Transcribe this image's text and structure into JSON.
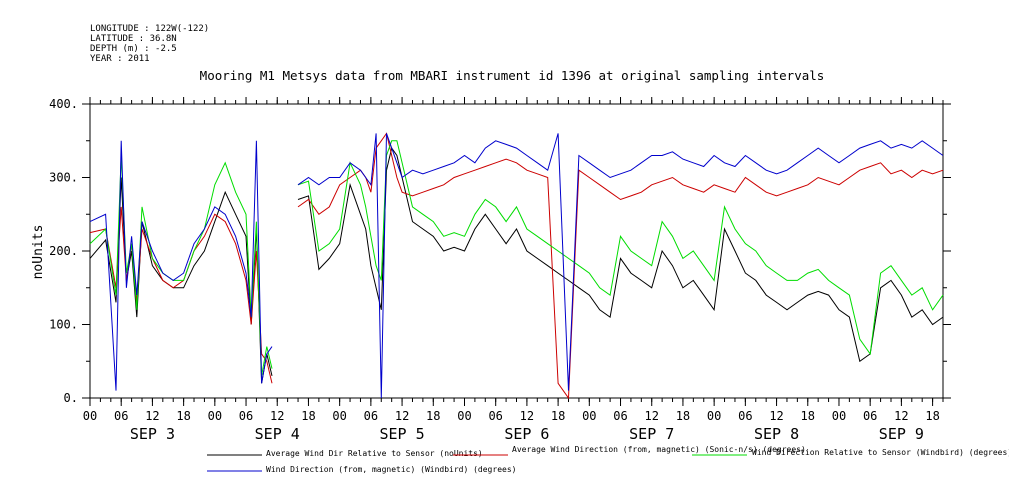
{
  "header": {
    "longitude": "LONGITUDE : 122W(-122)",
    "latitude": "LATITUDE : 36.8N",
    "depth": "DEPTH (m) : -2.5",
    "year": "YEAR : 2011"
  },
  "chart_data": {
    "type": "line",
    "title": "Mooring M1 Metsys data from MBARI instrument id 1396 at original sampling intervals",
    "xlabel": "",
    "ylabel": "noUnits",
    "xlim_hours": [
      0,
      164
    ],
    "ylim": [
      0,
      400
    ],
    "yticks": [
      0,
      100,
      200,
      300,
      400
    ],
    "ytick_labels": [
      "0.",
      "100.",
      "200.",
      "300.",
      "400."
    ],
    "hour_labels": [
      "00",
      "06",
      "12",
      "18",
      "00",
      "06",
      "12",
      "18",
      "00",
      "06",
      "12",
      "18",
      "00",
      "06",
      "12",
      "18",
      "00",
      "06",
      "12",
      "18",
      "00",
      "06",
      "12",
      "18",
      "00",
      "06",
      "12",
      "18"
    ],
    "day_labels": [
      "SEP 3",
      "SEP 4",
      "SEP 5",
      "SEP 6",
      "SEP 7",
      "SEP 8",
      "SEP 9"
    ],
    "grid": false,
    "legend_position": "bottom",
    "series": [
      {
        "name": "Average Wind Dir Relative to Sensor (noUnits)",
        "color": "#000000",
        "x": [
          0,
          3,
          5,
          6,
          7,
          8,
          9,
          10,
          12,
          14,
          16,
          18,
          20,
          22,
          24,
          26,
          28,
          30,
          31,
          32,
          33,
          34,
          35,
          38,
          40,
          42,
          44,
          46,
          48,
          50,
          52,
          53,
          54,
          55,
          56,
          57,
          58,
          59,
          60,
          62,
          64,
          66,
          68,
          70,
          72,
          74,
          76,
          78,
          80,
          82,
          84,
          86,
          88,
          90,
          92,
          94,
          96,
          98,
          100,
          102,
          104,
          106,
          108,
          110,
          112,
          114,
          116,
          118,
          120,
          122,
          124,
          126,
          128,
          130,
          132,
          134,
          136,
          138,
          140,
          142,
          144,
          146,
          148,
          150,
          152,
          154,
          156,
          158,
          160,
          162,
          164
        ],
        "y": [
          190,
          215,
          130,
          300,
          160,
          200,
          110,
          240,
          180,
          160,
          150,
          150,
          180,
          200,
          240,
          280,
          250,
          220,
          100,
          230,
          20,
          60,
          30,
          null,
          270,
          275,
          175,
          190,
          210,
          290,
          250,
          230,
          180,
          150,
          120,
          310,
          340,
          330,
          300,
          240,
          230,
          220,
          200,
          205,
          200,
          230,
          250,
          230,
          210,
          230,
          200,
          190,
          180,
          170,
          160,
          150,
          140,
          120,
          110,
          190,
          170,
          160,
          150,
          200,
          180,
          150,
          160,
          140,
          120,
          230,
          200,
          170,
          160,
          140,
          130,
          120,
          130,
          140,
          145,
          140,
          120,
          110,
          50,
          60,
          150,
          160,
          140,
          110,
          120,
          100,
          110
        ]
      },
      {
        "name": "Average Wind Direction (from, magnetic) (Sonic-n/s) (degrees)",
        "color": "#cc0000",
        "x": [
          0,
          3,
          5,
          6,
          7,
          8,
          9,
          10,
          12,
          14,
          16,
          18,
          20,
          22,
          24,
          26,
          28,
          30,
          31,
          32,
          33,
          34,
          35,
          38,
          40,
          42,
          44,
          46,
          48,
          50,
          52,
          53,
          54,
          55,
          56,
          57,
          58,
          59,
          60,
          62,
          64,
          66,
          68,
          70,
          72,
          74,
          76,
          78,
          80,
          82,
          84,
          86,
          88,
          90,
          92,
          94,
          96,
          98,
          100,
          102,
          104,
          106,
          108,
          110,
          112,
          114,
          116,
          118,
          120,
          122,
          124,
          126,
          128,
          130,
          132,
          134,
          136,
          138,
          140,
          142,
          144,
          146,
          148,
          150,
          152,
          154,
          156,
          158,
          160,
          162,
          164
        ],
        "y": [
          225,
          230,
          150,
          260,
          160,
          210,
          130,
          230,
          190,
          160,
          150,
          160,
          200,
          220,
          250,
          240,
          210,
          160,
          100,
          200,
          60,
          50,
          20,
          null,
          260,
          270,
          250,
          260,
          290,
          300,
          310,
          300,
          280,
          340,
          350,
          360,
          330,
          300,
          280,
          275,
          280,
          285,
          290,
          300,
          305,
          310,
          315,
          320,
          325,
          320,
          310,
          305,
          300,
          20,
          0,
          310,
          300,
          290,
          280,
          270,
          275,
          280,
          290,
          295,
          300,
          290,
          285,
          280,
          290,
          285,
          280,
          300,
          290,
          280,
          275,
          280,
          285,
          290,
          300,
          295,
          290,
          300,
          310,
          315,
          320,
          305,
          310,
          300,
          310,
          305,
          310
        ]
      },
      {
        "name": "Wind Direction Relative to Sensor (Windbird) (degrees)",
        "color": "#00dd00",
        "x": [
          0,
          3,
          5,
          6,
          7,
          8,
          9,
          10,
          12,
          14,
          16,
          18,
          20,
          22,
          24,
          26,
          28,
          30,
          31,
          32,
          33,
          34,
          35,
          38,
          40,
          42,
          44,
          46,
          48,
          50,
          52,
          53,
          54,
          55,
          56,
          57,
          58,
          59,
          60,
          62,
          64,
          66,
          68,
          70,
          72,
          74,
          76,
          78,
          80,
          82,
          84,
          86,
          88,
          90,
          92,
          94,
          96,
          98,
          100,
          102,
          104,
          106,
          108,
          110,
          112,
          114,
          116,
          118,
          120,
          122,
          124,
          126,
          128,
          130,
          132,
          134,
          136,
          138,
          140,
          142,
          144,
          146,
          148,
          150,
          152,
          154,
          156,
          158,
          160,
          162,
          164
        ],
        "y": [
          210,
          230,
          140,
          330,
          170,
          210,
          120,
          260,
          190,
          170,
          160,
          160,
          200,
          230,
          290,
          320,
          280,
          250,
          110,
          240,
          30,
          70,
          40,
          null,
          290,
          295,
          200,
          210,
          230,
          320,
          290,
          260,
          220,
          180,
          160,
          330,
          350,
          350,
          320,
          260,
          250,
          240,
          220,
          225,
          220,
          250,
          270,
          260,
          240,
          260,
          230,
          220,
          210,
          200,
          190,
          180,
          170,
          150,
          140,
          220,
          200,
          190,
          180,
          240,
          220,
          190,
          200,
          180,
          160,
          260,
          230,
          210,
          200,
          180,
          170,
          160,
          160,
          170,
          175,
          160,
          150,
          140,
          80,
          60,
          170,
          180,
          160,
          140,
          150,
          120,
          140
        ]
      },
      {
        "name": "Wind Direction (from, magnetic) (Windbird) (degrees)",
        "color": "#0000cc",
        "x": [
          0,
          3,
          5,
          6,
          7,
          8,
          9,
          10,
          12,
          14,
          16,
          18,
          20,
          22,
          24,
          26,
          28,
          30,
          31,
          32,
          33,
          34,
          35,
          38,
          40,
          42,
          44,
          46,
          48,
          50,
          52,
          53,
          54,
          55,
          56,
          57,
          58,
          59,
          60,
          62,
          64,
          66,
          68,
          70,
          72,
          74,
          76,
          78,
          80,
          82,
          84,
          86,
          88,
          90,
          92,
          94,
          96,
          98,
          100,
          102,
          104,
          106,
          108,
          110,
          112,
          114,
          116,
          118,
          120,
          122,
          124,
          126,
          128,
          130,
          132,
          134,
          136,
          138,
          140,
          142,
          144,
          146,
          148,
          150,
          152,
          154,
          156,
          158,
          160,
          162,
          164
        ],
        "y": [
          240,
          250,
          10,
          350,
          150,
          220,
          140,
          240,
          200,
          170,
          160,
          170,
          210,
          230,
          260,
          250,
          220,
          170,
          110,
          350,
          20,
          60,
          70,
          null,
          290,
          300,
          290,
          300,
          300,
          320,
          310,
          300,
          290,
          360,
          0,
          360,
          340,
          320,
          300,
          310,
          305,
          310,
          315,
          320,
          330,
          320,
          340,
          350,
          345,
          340,
          330,
          320,
          310,
          360,
          10,
          330,
          320,
          310,
          300,
          305,
          310,
          320,
          330,
          330,
          335,
          325,
          320,
          315,
          330,
          320,
          315,
          330,
          320,
          310,
          305,
          310,
          320,
          330,
          340,
          330,
          320,
          330,
          340,
          345,
          350,
          340,
          345,
          340,
          350,
          340,
          330
        ]
      }
    ]
  }
}
